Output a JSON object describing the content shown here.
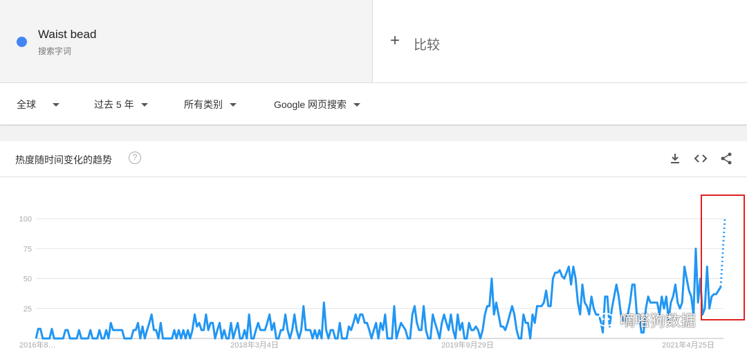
{
  "search_term": {
    "name": "Waist bead",
    "type": "搜索字词",
    "color": "#4285f4"
  },
  "compare": {
    "label": "比较",
    "icon": "plus-icon"
  },
  "filters": [
    {
      "label": "全球"
    },
    {
      "label": "过去 5 年"
    },
    {
      "label": "所有类别"
    },
    {
      "label": "Google 网页搜索"
    }
  ],
  "card": {
    "title": "热度随时间变化的趋势",
    "help": "?",
    "icons": [
      "download-icon",
      "embed-code-icon",
      "share-icon"
    ]
  },
  "watermark": "嘀嗒狗数据",
  "chart_data": {
    "type": "line",
    "title": "",
    "xlabel": "",
    "ylabel": "",
    "ylim": [
      0,
      100
    ],
    "yticks": [
      25,
      50,
      75,
      100
    ],
    "xtick_labels": [
      "2016年8…",
      "2018年3月4日",
      "2019年9月29日",
      "2021年4月25日"
    ],
    "grid": true,
    "series_color": "#2196f3",
    "series": [
      {
        "values": [
          0,
          8,
          8,
          0,
          0,
          0,
          0,
          8,
          0,
          0,
          0,
          0,
          0,
          7,
          7,
          0,
          0,
          0,
          0,
          7,
          0,
          0,
          0,
          0,
          7,
          0,
          0,
          0,
          7,
          0,
          0,
          7,
          0,
          13,
          7,
          7,
          7,
          7,
          7,
          0,
          0,
          0,
          0,
          7,
          7,
          13,
          0,
          10,
          0,
          7,
          13,
          20,
          7,
          7,
          0,
          13,
          0,
          0,
          0,
          0,
          0,
          7,
          0,
          7,
          0,
          7,
          0,
          7,
          0,
          7,
          20,
          10,
          13,
          7,
          7,
          20,
          7,
          13,
          13,
          0,
          7,
          13,
          0,
          7,
          0,
          0,
          13,
          0,
          7,
          13,
          0,
          0,
          7,
          0,
          20,
          0,
          0,
          7,
          13,
          7,
          7,
          7,
          13,
          20,
          7,
          13,
          0,
          0,
          7,
          7,
          20,
          7,
          0,
          7,
          20,
          7,
          0,
          7,
          27,
          7,
          7,
          7,
          0,
          7,
          0,
          7,
          0,
          30,
          7,
          0,
          7,
          7,
          0,
          0,
          13,
          0,
          0,
          0,
          10,
          7,
          13,
          20,
          13,
          20,
          20,
          13,
          13,
          7,
          0,
          7,
          13,
          0,
          13,
          7,
          20,
          0,
          0,
          0,
          27,
          0,
          7,
          13,
          10,
          7,
          0,
          0,
          20,
          27,
          13,
          7,
          7,
          27,
          7,
          0,
          0,
          20,
          13,
          7,
          0,
          13,
          20,
          13,
          7,
          20,
          7,
          0,
          20,
          7,
          13,
          0,
          0,
          13,
          7,
          7,
          10,
          7,
          0,
          7,
          20,
          27,
          27,
          50,
          20,
          30,
          20,
          10,
          10,
          7,
          13,
          20,
          27,
          20,
          7,
          0,
          0,
          20,
          13,
          13,
          0,
          20,
          13,
          27,
          27,
          27,
          30,
          40,
          27,
          27,
          50,
          55,
          55,
          57,
          52,
          50,
          55,
          60,
          45,
          60,
          50,
          30,
          20,
          45,
          30,
          27,
          20,
          35,
          25,
          20,
          20,
          15,
          5,
          35,
          35,
          10,
          25,
          35,
          45,
          35,
          20,
          15,
          15,
          20,
          30,
          45,
          45,
          20,
          20,
          5,
          5,
          25,
          35,
          30,
          30,
          30,
          30,
          20,
          35,
          25,
          35,
          15,
          30,
          35,
          45,
          30,
          25,
          30,
          60,
          50,
          40,
          35,
          20,
          75,
          30,
          50,
          20,
          25,
          60,
          25,
          35,
          37,
          37,
          40,
          43
        ],
        "partial_value": 100
      }
    ]
  }
}
